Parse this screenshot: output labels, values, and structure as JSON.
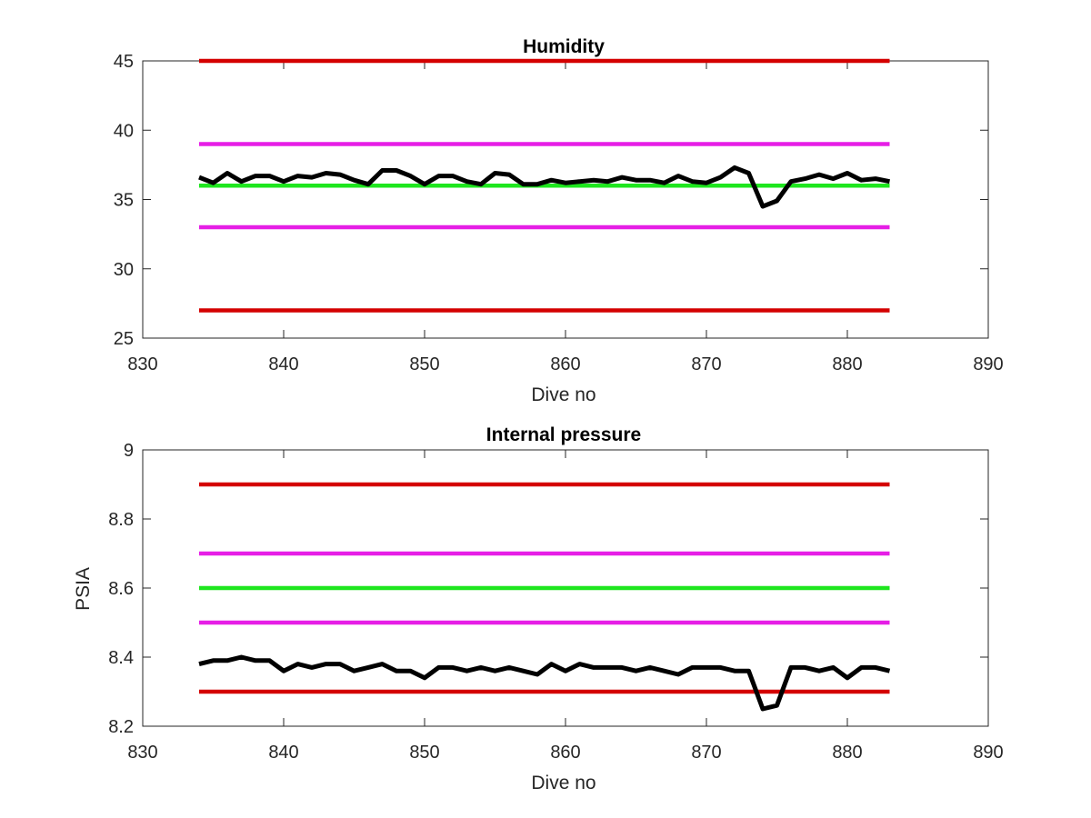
{
  "chart_data": [
    {
      "type": "line",
      "title": "Humidity",
      "xlabel": "Dive no",
      "ylabel": "",
      "xlim": [
        830,
        890
      ],
      "ylim": [
        25,
        45
      ],
      "xticks": [
        830,
        840,
        850,
        860,
        870,
        880,
        890
      ],
      "yticks": [
        25,
        30,
        35,
        40,
        45
      ],
      "grid": false,
      "series": [
        {
          "style": "limit",
          "color": "#d40000",
          "x": [
            834,
            883
          ],
          "y": [
            45,
            45
          ]
        },
        {
          "style": "limit",
          "color": "#e61ee6",
          "x": [
            834,
            883
          ],
          "y": [
            39,
            39
          ]
        },
        {
          "style": "limit",
          "color": "#1ee61e",
          "x": [
            834,
            883
          ],
          "y": [
            36,
            36
          ]
        },
        {
          "style": "limit",
          "color": "#e61ee6",
          "x": [
            834,
            883
          ],
          "y": [
            33,
            33
          ]
        },
        {
          "style": "limit",
          "color": "#d40000",
          "x": [
            834,
            883
          ],
          "y": [
            27,
            27
          ]
        },
        {
          "style": "data",
          "color": "#000000",
          "x": [
            834,
            835,
            836,
            837,
            838,
            839,
            840,
            841,
            842,
            843,
            844,
            845,
            846,
            847,
            848,
            849,
            850,
            851,
            852,
            853,
            854,
            855,
            856,
            857,
            858,
            859,
            860,
            861,
            862,
            863,
            864,
            865,
            866,
            867,
            868,
            869,
            870,
            871,
            872,
            873,
            874,
            875,
            876,
            877,
            878,
            879,
            880,
            881,
            882,
            883
          ],
          "y": [
            36.6,
            36.2,
            36.9,
            36.3,
            36.7,
            36.7,
            36.3,
            36.7,
            36.6,
            36.9,
            36.8,
            36.4,
            36.1,
            37.1,
            37.1,
            36.7,
            36.1,
            36.7,
            36.7,
            36.3,
            36.1,
            36.9,
            36.8,
            36.1,
            36.1,
            36.4,
            36.2,
            36.3,
            36.4,
            36.3,
            36.6,
            36.4,
            36.4,
            36.2,
            36.7,
            36.3,
            36.2,
            36.6,
            37.3,
            36.9,
            34.5,
            34.9,
            36.3,
            36.5,
            36.8,
            36.5,
            36.9,
            36.4,
            36.5,
            36.3
          ]
        }
      ]
    },
    {
      "type": "line",
      "title": "Internal pressure",
      "xlabel": "Dive no",
      "ylabel": "PSIA",
      "xlim": [
        830,
        890
      ],
      "ylim": [
        8.2,
        9
      ],
      "xticks": [
        830,
        840,
        850,
        860,
        870,
        880,
        890
      ],
      "yticks": [
        8.2,
        8.4,
        8.6,
        8.8,
        9
      ],
      "ytick_labels": [
        "8.2",
        "8.4",
        "8.6",
        "8.8",
        "9"
      ],
      "grid": false,
      "series": [
        {
          "style": "limit",
          "color": "#d40000",
          "x": [
            834,
            883
          ],
          "y": [
            8.9,
            8.9
          ]
        },
        {
          "style": "limit",
          "color": "#e61ee6",
          "x": [
            834,
            883
          ],
          "y": [
            8.7,
            8.7
          ]
        },
        {
          "style": "limit",
          "color": "#1ee61e",
          "x": [
            834,
            883
          ],
          "y": [
            8.6,
            8.6
          ]
        },
        {
          "style": "limit",
          "color": "#e61ee6",
          "x": [
            834,
            883
          ],
          "y": [
            8.5,
            8.5
          ]
        },
        {
          "style": "limit",
          "color": "#d40000",
          "x": [
            834,
            883
          ],
          "y": [
            8.3,
            8.3
          ]
        },
        {
          "style": "data",
          "color": "#000000",
          "x": [
            834,
            835,
            836,
            837,
            838,
            839,
            840,
            841,
            842,
            843,
            844,
            845,
            846,
            847,
            848,
            849,
            850,
            851,
            852,
            853,
            854,
            855,
            856,
            857,
            858,
            859,
            860,
            861,
            862,
            863,
            864,
            865,
            866,
            867,
            868,
            869,
            870,
            871,
            872,
            873,
            874,
            875,
            876,
            877,
            878,
            879,
            880,
            881,
            882,
            883
          ],
          "y": [
            8.38,
            8.39,
            8.39,
            8.4,
            8.39,
            8.39,
            8.36,
            8.38,
            8.37,
            8.38,
            8.38,
            8.36,
            8.37,
            8.38,
            8.36,
            8.36,
            8.34,
            8.37,
            8.37,
            8.36,
            8.37,
            8.36,
            8.37,
            8.36,
            8.35,
            8.38,
            8.36,
            8.38,
            8.37,
            8.37,
            8.37,
            8.36,
            8.37,
            8.36,
            8.35,
            8.37,
            8.37,
            8.37,
            8.36,
            8.36,
            8.25,
            8.26,
            8.37,
            8.37,
            8.36,
            8.37,
            8.34,
            8.37,
            8.37,
            8.36
          ]
        }
      ]
    }
  ]
}
